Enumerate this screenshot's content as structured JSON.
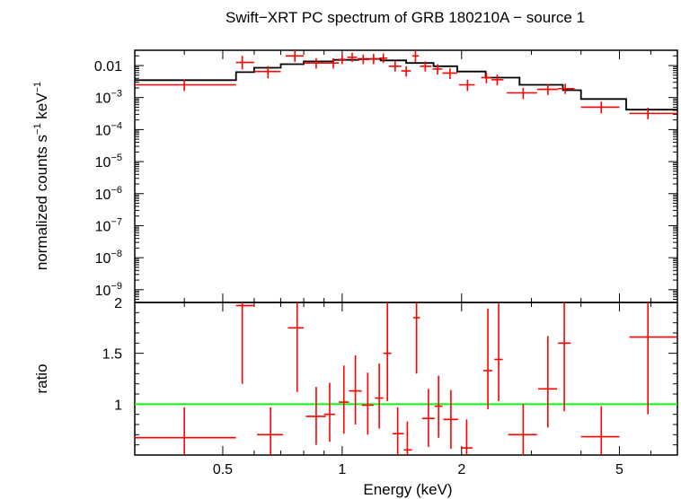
{
  "chart_data": [
    {
      "type": "scatter",
      "panel": "spectrum",
      "title": "Swift−XRT PC spectrum of GRB 180210A − source 1",
      "ylabel_main": "normalized counts s",
      "ylabel_sup1": "−1",
      "ylabel_mid": " keV",
      "ylabel_sup2": "−1",
      "xlabel": "",
      "x_scale": "log",
      "y_scale": "log",
      "xlim": [
        0.3,
        7.0
      ],
      "ylim": [
        4e-10,
        0.03
      ],
      "y_ticks": [
        {
          "v": 0.01,
          "base": "0.01",
          "exp": ""
        },
        {
          "v": 0.001,
          "base": "10",
          "exp": "−3"
        },
        {
          "v": 0.0001,
          "base": "10",
          "exp": "−4"
        },
        {
          "v": 1e-05,
          "base": "10",
          "exp": "−5"
        },
        {
          "v": 1e-06,
          "base": "10",
          "exp": "−6"
        },
        {
          "v": 1e-07,
          "base": "10",
          "exp": "−7"
        },
        {
          "v": 1e-08,
          "base": "10",
          "exp": "−8"
        },
        {
          "v": 1e-09,
          "base": "10",
          "exp": "−9"
        }
      ],
      "model_steps": [
        {
          "x0": 0.3,
          "x1": 0.54,
          "y": 0.0035
        },
        {
          "x0": 0.54,
          "x1": 0.6,
          "y": 0.0062
        },
        {
          "x0": 0.6,
          "x1": 0.7,
          "y": 0.0085
        },
        {
          "x0": 0.7,
          "x1": 0.8,
          "y": 0.011
        },
        {
          "x0": 0.8,
          "x1": 0.95,
          "y": 0.0135
        },
        {
          "x0": 0.95,
          "x1": 1.1,
          "y": 0.015
        },
        {
          "x0": 1.1,
          "x1": 1.25,
          "y": 0.016
        },
        {
          "x0": 1.25,
          "x1": 1.45,
          "y": 0.0145
        },
        {
          "x0": 1.45,
          "x1": 1.7,
          "y": 0.012
        },
        {
          "x0": 1.7,
          "x1": 1.95,
          "y": 0.0095
        },
        {
          "x0": 1.95,
          "x1": 2.3,
          "y": 0.0065
        },
        {
          "x0": 2.3,
          "x1": 2.8,
          "y": 0.0042
        },
        {
          "x0": 2.8,
          "x1": 3.6,
          "y": 0.0025
        },
        {
          "x0": 3.6,
          "x1": 4.0,
          "y": 0.0017
        },
        {
          "x0": 4.0,
          "x1": 5.2,
          "y": 0.0009
        },
        {
          "x0": 5.2,
          "x1": 7.0,
          "y": 0.00042
        }
      ],
      "points": [
        {
          "x": 0.4,
          "xlo": 0.3,
          "xhi": 0.54,
          "y": 0.0025,
          "ylo": 0.0016,
          "yhi": 0.0036
        },
        {
          "x": 0.56,
          "xlo": 0.54,
          "xhi": 0.6,
          "y": 0.0125,
          "ylo": 0.0075,
          "yhi": 0.02
        },
        {
          "x": 0.65,
          "xlo": 0.6,
          "xhi": 0.7,
          "y": 0.0065,
          "ylo": 0.004,
          "yhi": 0.0095
        },
        {
          "x": 0.76,
          "xlo": 0.72,
          "xhi": 0.8,
          "y": 0.02,
          "ylo": 0.013,
          "yhi": 0.03
        },
        {
          "x": 0.86,
          "xlo": 0.8,
          "xhi": 0.92,
          "y": 0.012,
          "ylo": 0.008,
          "yhi": 0.017
        },
        {
          "x": 0.95,
          "xlo": 0.92,
          "xhi": 0.98,
          "y": 0.012,
          "ylo": 0.008,
          "yhi": 0.017
        },
        {
          "x": 1.0,
          "xlo": 0.98,
          "xhi": 1.02,
          "y": 0.0155,
          "ylo": 0.011,
          "yhi": 0.022
        },
        {
          "x": 1.06,
          "xlo": 1.03,
          "xhi": 1.09,
          "y": 0.018,
          "ylo": 0.013,
          "yhi": 0.025
        },
        {
          "x": 1.13,
          "xlo": 1.09,
          "xhi": 1.17,
          "y": 0.0155,
          "ylo": 0.011,
          "yhi": 0.022
        },
        {
          "x": 1.2,
          "xlo": 1.17,
          "xhi": 1.24,
          "y": 0.016,
          "ylo": 0.011,
          "yhi": 0.023
        },
        {
          "x": 1.27,
          "xlo": 1.24,
          "xhi": 1.3,
          "y": 0.017,
          "ylo": 0.012,
          "yhi": 0.024
        },
        {
          "x": 1.36,
          "xlo": 1.31,
          "xhi": 1.41,
          "y": 0.0095,
          "ylo": 0.0065,
          "yhi": 0.0135
        },
        {
          "x": 1.45,
          "xlo": 1.41,
          "xhi": 1.49,
          "y": 0.0068,
          "ylo": 0.0045,
          "yhi": 0.0095
        },
        {
          "x": 1.53,
          "xlo": 1.5,
          "xhi": 1.56,
          "y": 0.02,
          "ylo": 0.013,
          "yhi": 0.03
        },
        {
          "x": 1.62,
          "xlo": 1.57,
          "xhi": 1.68,
          "y": 0.0095,
          "ylo": 0.0065,
          "yhi": 0.0135
        },
        {
          "x": 1.74,
          "xlo": 1.69,
          "xhi": 1.79,
          "y": 0.0078,
          "ylo": 0.0052,
          "yhi": 0.011
        },
        {
          "x": 1.87,
          "xlo": 1.79,
          "xhi": 1.95,
          "y": 0.0058,
          "ylo": 0.0038,
          "yhi": 0.0082
        },
        {
          "x": 2.07,
          "xlo": 1.97,
          "xhi": 2.16,
          "y": 0.0025,
          "ylo": 0.0016,
          "yhi": 0.0036
        },
        {
          "x": 2.31,
          "xlo": 2.24,
          "xhi": 2.38,
          "y": 0.0042,
          "ylo": 0.0028,
          "yhi": 0.006
        },
        {
          "x": 2.46,
          "xlo": 2.38,
          "xhi": 2.55,
          "y": 0.0036,
          "ylo": 0.0024,
          "yhi": 0.0052
        },
        {
          "x": 2.86,
          "xlo": 2.6,
          "xhi": 3.1,
          "y": 0.0014,
          "ylo": 0.0009,
          "yhi": 0.002
        },
        {
          "x": 3.3,
          "xlo": 3.1,
          "xhi": 3.5,
          "y": 0.0018,
          "ylo": 0.0012,
          "yhi": 0.0026
        },
        {
          "x": 3.65,
          "xlo": 3.5,
          "xhi": 3.85,
          "y": 0.0019,
          "ylo": 0.0013,
          "yhi": 0.0027
        },
        {
          "x": 4.5,
          "xlo": 4.0,
          "xhi": 5.0,
          "y": 0.0005,
          "ylo": 0.00032,
          "yhi": 0.00075
        },
        {
          "x": 5.9,
          "xlo": 5.3,
          "xhi": 7.0,
          "y": 0.00032,
          "ylo": 0.00021,
          "yhi": 0.00048
        }
      ]
    },
    {
      "type": "scatter",
      "panel": "ratio",
      "title": "",
      "xlabel": "Energy (keV)",
      "ylabel": "ratio",
      "x_scale": "log",
      "y_scale": "linear",
      "xlim": [
        0.3,
        7.0
      ],
      "ylim": [
        0.5,
        2.0
      ],
      "x_ticks": [
        {
          "v": 0.5,
          "label": "0.5"
        },
        {
          "v": 1,
          "label": "1"
        },
        {
          "v": 2,
          "label": "2"
        },
        {
          "v": 5,
          "label": "5"
        }
      ],
      "y_ticks": [
        {
          "v": 1,
          "label": "1"
        },
        {
          "v": 1.5,
          "label": "1.5"
        },
        {
          "v": 2,
          "label": "2"
        }
      ],
      "reference_line": 1,
      "points": [
        {
          "x": 0.4,
          "xlo": 0.3,
          "xhi": 0.54,
          "y": 0.67,
          "ylo": 0.5,
          "yhi": 0.97
        },
        {
          "x": 0.56,
          "xlo": 0.54,
          "xhi": 0.6,
          "y": 1.97,
          "ylo": 1.2,
          "yhi": 2.0
        },
        {
          "x": 0.66,
          "xlo": 0.61,
          "xhi": 0.71,
          "y": 0.7,
          "ylo": 0.5,
          "yhi": 0.97
        },
        {
          "x": 0.77,
          "xlo": 0.73,
          "xhi": 0.8,
          "y": 1.75,
          "ylo": 1.12,
          "yhi": 2.0
        },
        {
          "x": 0.86,
          "xlo": 0.81,
          "xhi": 0.91,
          "y": 0.88,
          "ylo": 0.6,
          "yhi": 1.17
        },
        {
          "x": 0.93,
          "xlo": 0.9,
          "xhi": 0.96,
          "y": 0.9,
          "ylo": 0.63,
          "yhi": 1.21
        },
        {
          "x": 1.01,
          "xlo": 0.98,
          "xhi": 1.04,
          "y": 1.02,
          "ylo": 0.71,
          "yhi": 1.38
        },
        {
          "x": 1.08,
          "xlo": 1.04,
          "xhi": 1.12,
          "y": 1.13,
          "ylo": 0.8,
          "yhi": 1.48
        },
        {
          "x": 1.16,
          "xlo": 1.12,
          "xhi": 1.2,
          "y": 0.99,
          "ylo": 0.7,
          "yhi": 1.31
        },
        {
          "x": 1.24,
          "xlo": 1.21,
          "xhi": 1.27,
          "y": 1.06,
          "ylo": 0.76,
          "yhi": 1.4
        },
        {
          "x": 1.3,
          "xlo": 1.27,
          "xhi": 1.33,
          "y": 1.5,
          "ylo": 1.03,
          "yhi": 2.0
        },
        {
          "x": 1.38,
          "xlo": 1.34,
          "xhi": 1.43,
          "y": 0.71,
          "ylo": 0.5,
          "yhi": 0.97
        },
        {
          "x": 1.46,
          "xlo": 1.43,
          "xhi": 1.5,
          "y": 0.55,
          "ylo": 0.5,
          "yhi": 0.83
        },
        {
          "x": 1.54,
          "xlo": 1.51,
          "xhi": 1.57,
          "y": 1.85,
          "ylo": 1.3,
          "yhi": 2.0
        },
        {
          "x": 1.65,
          "xlo": 1.59,
          "xhi": 1.71,
          "y": 0.86,
          "ylo": 0.58,
          "yhi": 1.15
        },
        {
          "x": 1.75,
          "xlo": 1.71,
          "xhi": 1.79,
          "y": 0.98,
          "ylo": 0.67,
          "yhi": 1.28
        },
        {
          "x": 1.88,
          "xlo": 1.8,
          "xhi": 1.96,
          "y": 0.85,
          "ylo": 0.56,
          "yhi": 1.14
        },
        {
          "x": 2.06,
          "xlo": 1.99,
          "xhi": 2.13,
          "y": 0.57,
          "ylo": 0.5,
          "yhi": 0.85
        },
        {
          "x": 2.33,
          "xlo": 2.27,
          "xhi": 2.39,
          "y": 1.33,
          "ylo": 0.95,
          "yhi": 1.94
        },
        {
          "x": 2.48,
          "xlo": 2.42,
          "xhi": 2.54,
          "y": 1.44,
          "ylo": 1.03,
          "yhi": 1.99
        },
        {
          "x": 2.86,
          "xlo": 2.62,
          "xhi": 3.1,
          "y": 0.7,
          "ylo": 0.5,
          "yhi": 1.0
        },
        {
          "x": 3.3,
          "xlo": 3.12,
          "xhi": 3.48,
          "y": 1.15,
          "ylo": 0.77,
          "yhi": 1.67
        },
        {
          "x": 3.63,
          "xlo": 3.5,
          "xhi": 3.77,
          "y": 1.6,
          "ylo": 0.93,
          "yhi": 2.0
        },
        {
          "x": 4.5,
          "xlo": 4.0,
          "xhi": 5.0,
          "y": 0.68,
          "ylo": 0.5,
          "yhi": 0.98
        },
        {
          "x": 5.9,
          "xlo": 5.3,
          "xhi": 7.0,
          "y": 1.66,
          "ylo": 0.9,
          "yhi": 2.0
        }
      ]
    }
  ],
  "colors": {
    "data": "#ff0000",
    "model": "#000000",
    "reference": "#00ff00",
    "frame": "#000000"
  }
}
